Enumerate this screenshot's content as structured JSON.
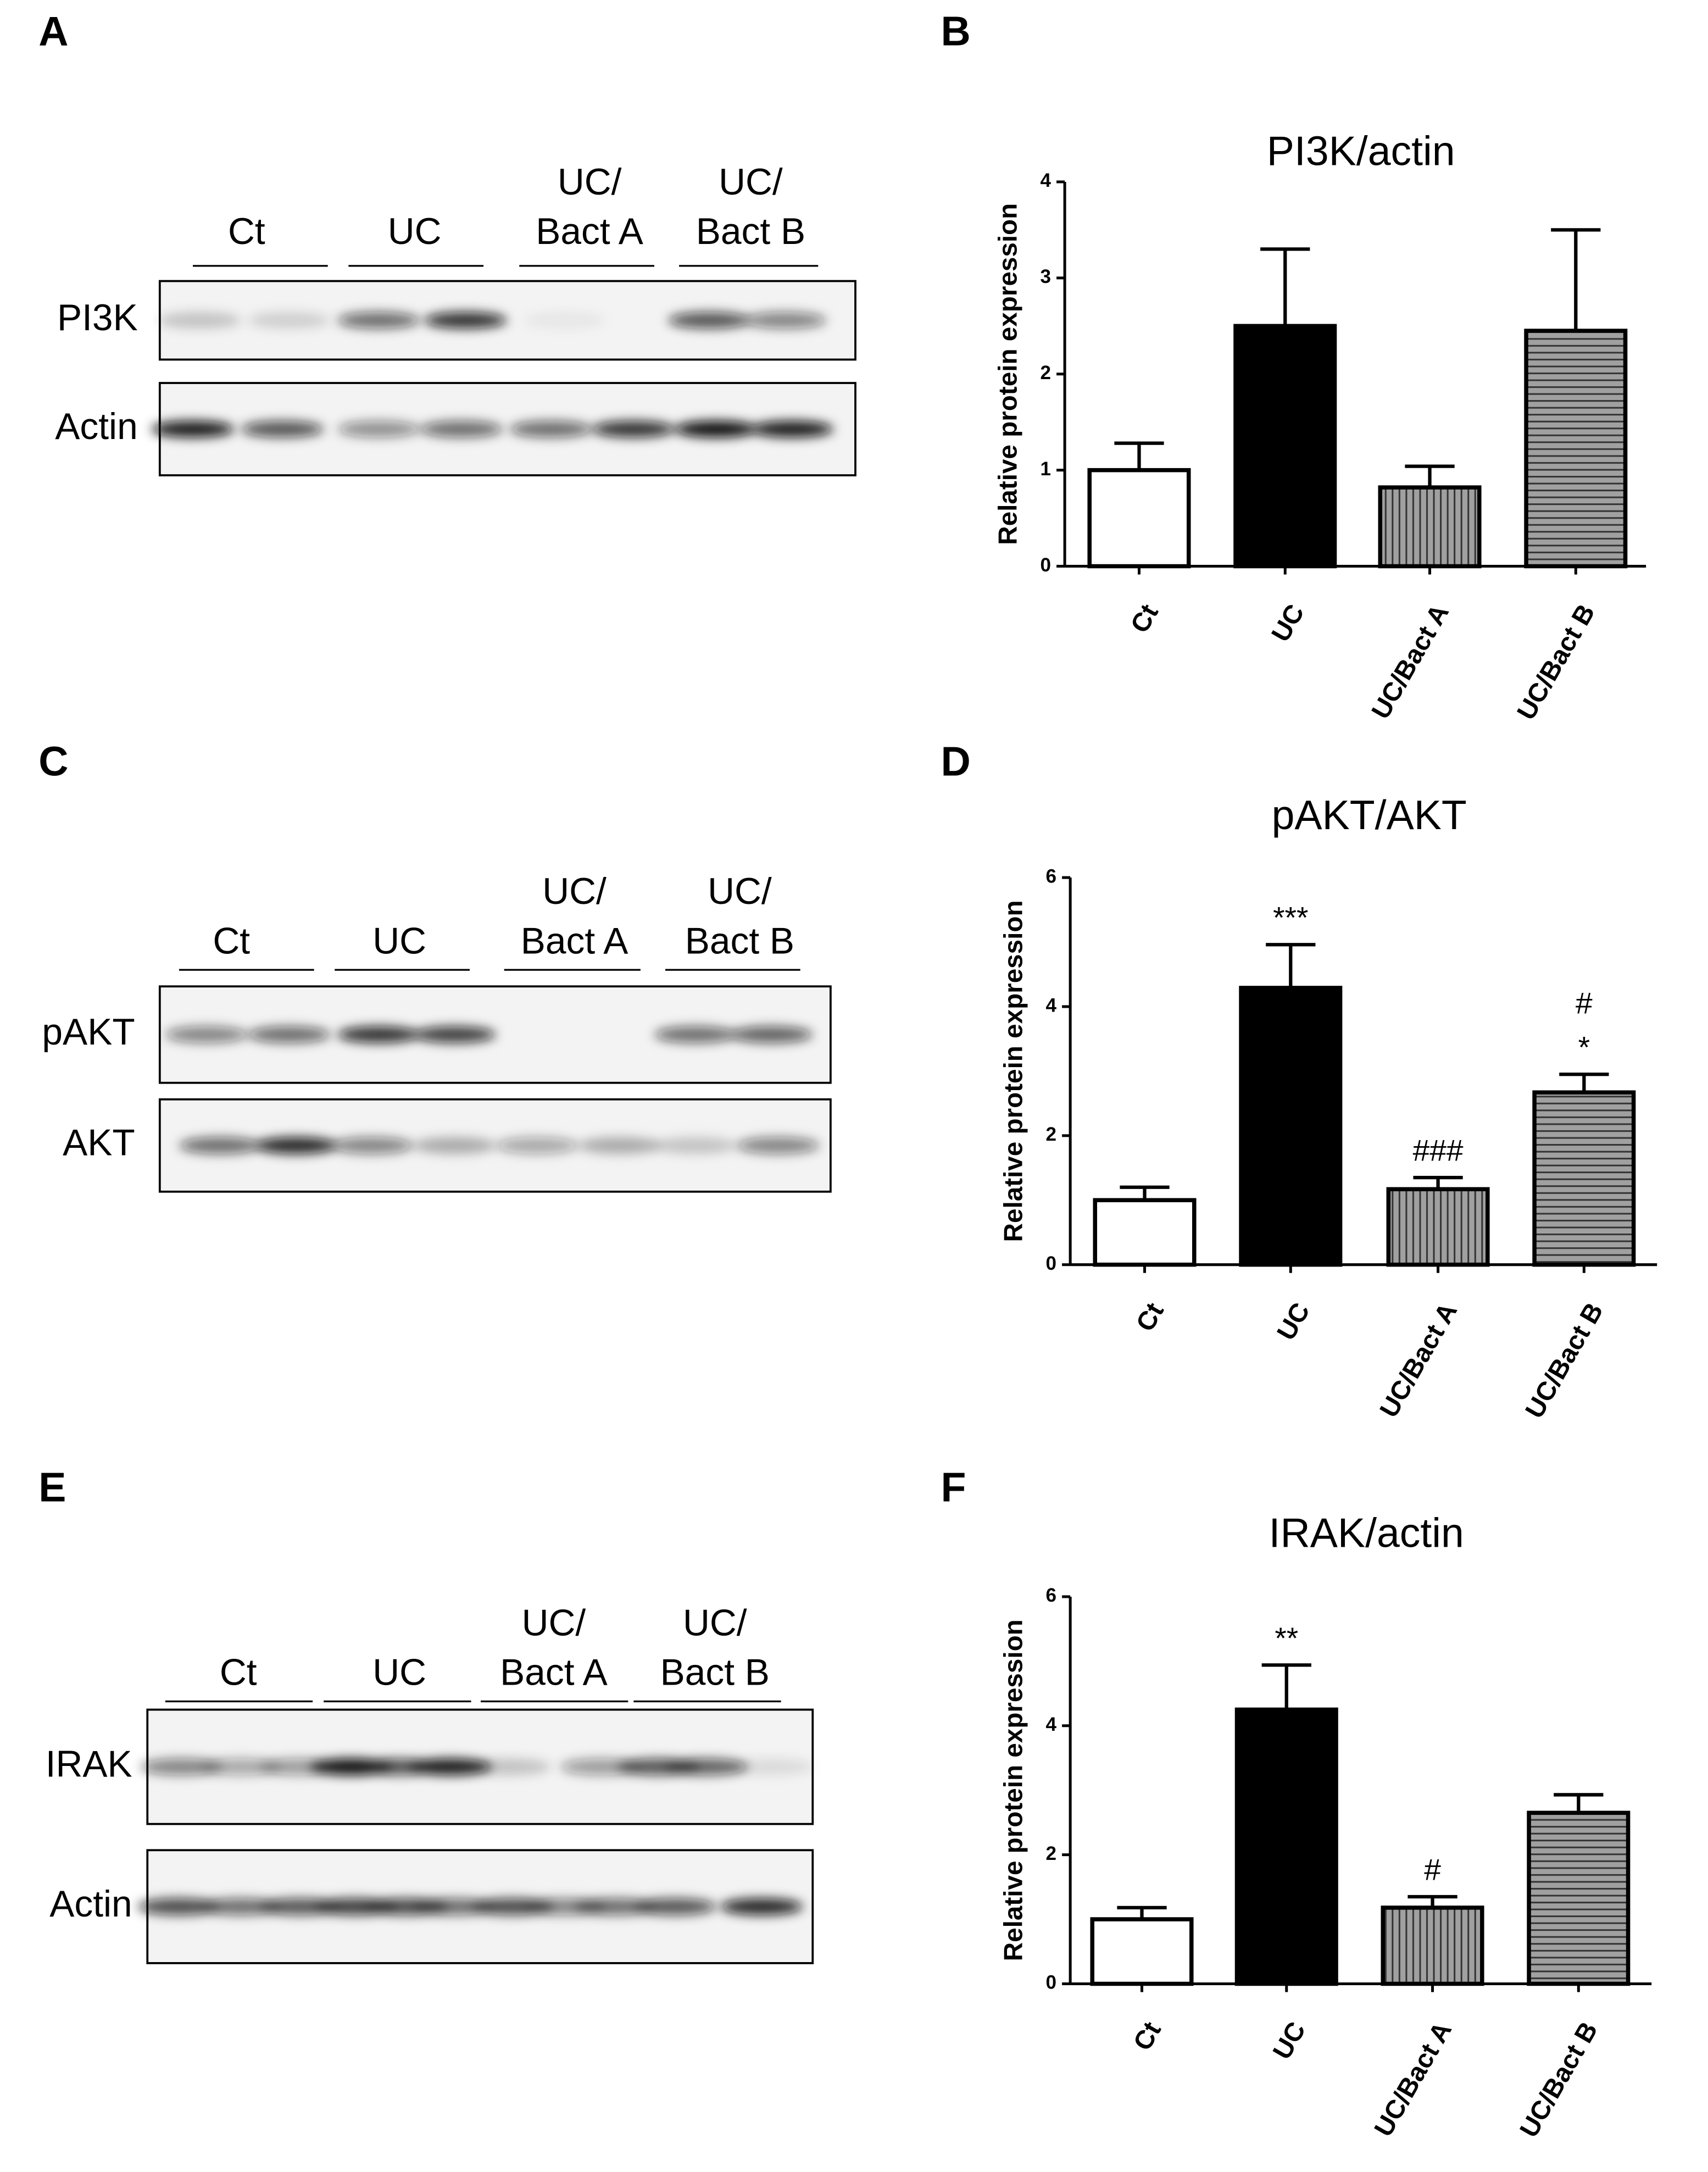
{
  "blots": [
    {
      "panel": "A",
      "lanes": [
        [
          "Ct"
        ],
        [
          "UC"
        ],
        [
          "UC/",
          "Bact A"
        ],
        [
          "UC/",
          "Bact B"
        ]
      ],
      "rows": [
        "PI3K",
        "Actin"
      ]
    },
    {
      "panel": "C",
      "lanes": [
        [
          "Ct"
        ],
        [
          "UC"
        ],
        [
          "UC/",
          "Bact A"
        ],
        [
          "UC/",
          "Bact B"
        ]
      ],
      "rows": [
        "pAKT",
        "AKT"
      ]
    },
    {
      "panel": "E",
      "lanes": [
        [
          "Ct"
        ],
        [
          "UC"
        ],
        [
          "UC/",
          "Bact A"
        ],
        [
          "UC/",
          "Bact B"
        ]
      ],
      "rows": [
        "IRAK",
        "Actin"
      ]
    }
  ],
  "chart_data": [
    {
      "type": "bar",
      "panel": "B",
      "title": "PI3K/actin",
      "ylabel": "Relative protein expression",
      "categories": [
        "Ct",
        "UC",
        "UC/Bact A",
        "UC/Bact B"
      ],
      "values": [
        1.0,
        2.5,
        0.82,
        2.45
      ],
      "errors": [
        0.28,
        0.8,
        0.22,
        1.05
      ],
      "colors": [
        "#ffffff",
        "#000000",
        "#a0a0a0",
        "#a0a0a0"
      ],
      "patterns": [
        "none",
        "none",
        "vertical",
        "horizontal"
      ],
      "annotations": [
        [],
        [],
        [],
        []
      ],
      "ylim": [
        0,
        4
      ],
      "yticks": [
        0,
        1,
        2,
        3,
        4
      ]
    },
    {
      "type": "bar",
      "panel": "D",
      "title": "pAKT/AKT",
      "ylabel": "Relative protein expression",
      "categories": [
        "Ct",
        "UC",
        "UC/Bact A",
        "UC/Bact B"
      ],
      "values": [
        1.0,
        4.29,
        1.17,
        2.67
      ],
      "errors": [
        0.2,
        0.67,
        0.18,
        0.28
      ],
      "colors": [
        "#ffffff",
        "#000000",
        "#a0a0a0",
        "#a0a0a0"
      ],
      "patterns": [
        "none",
        "none",
        "vertical",
        "horizontal"
      ],
      "annotations": [
        [],
        [
          "***"
        ],
        [
          "###"
        ],
        [
          "#",
          "*"
        ]
      ],
      "ylim": [
        0,
        6
      ],
      "yticks": [
        0,
        2,
        4,
        6
      ]
    },
    {
      "type": "bar",
      "panel": "F",
      "title": "IRAK/actin",
      "ylabel": "Relative protein expression",
      "categories": [
        "Ct",
        "UC",
        "UC/Bact A",
        "UC/Bact B"
      ],
      "values": [
        1.0,
        4.25,
        1.18,
        2.65
      ],
      "errors": [
        0.18,
        0.69,
        0.17,
        0.28
      ],
      "colors": [
        "#ffffff",
        "#000000",
        "#a0a0a0",
        "#a0a0a0"
      ],
      "patterns": [
        "none",
        "none",
        "vertical",
        "horizontal"
      ],
      "annotations": [
        [],
        [
          "**"
        ],
        [
          "#"
        ],
        []
      ],
      "ylim": [
        0,
        6
      ],
      "yticks": [
        0,
        2,
        4,
        6
      ]
    }
  ]
}
